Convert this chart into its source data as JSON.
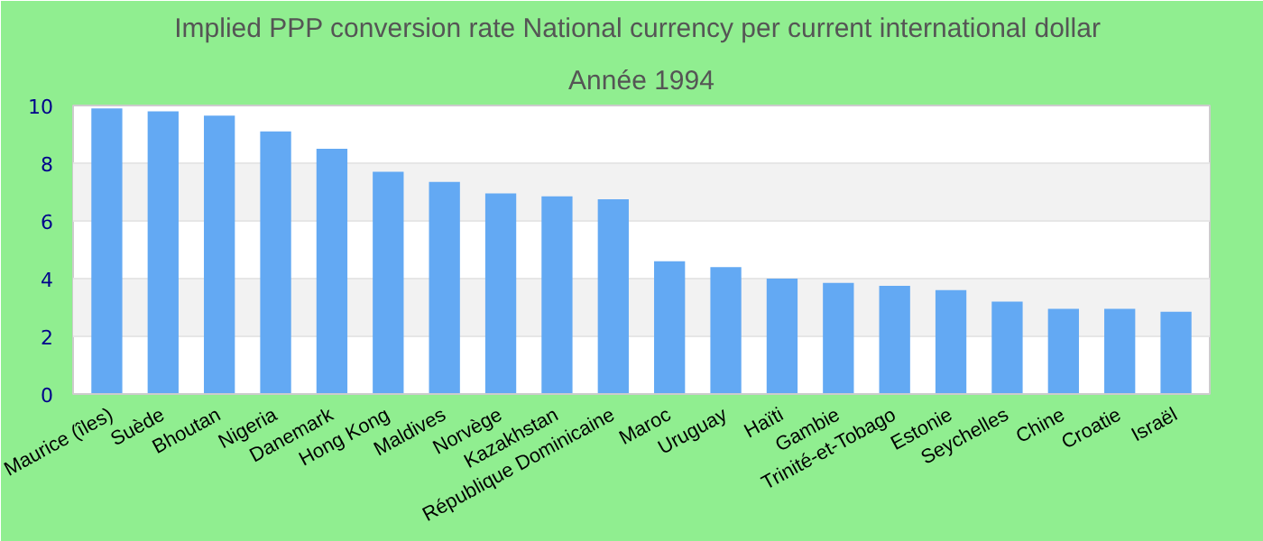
{
  "chart_data": {
    "type": "bar",
    "title": "Implied PPP conversion rate  National currency per current international dollar",
    "subtitle": "Année 1994",
    "categories": [
      "Maurice (îles)",
      "Suède",
      "Bhoutan",
      "Nigeria",
      "Danemark",
      "Hong Kong",
      "Maldives",
      "Norvège",
      "Kazakhstan",
      "République Dominicaine",
      "Maroc",
      "Uruguay",
      "Haïti",
      "Gambie",
      "Trinité-et-Tobago",
      "Estonie",
      "Seychelles",
      "Chine",
      "Croatie",
      "Israël"
    ],
    "values": [
      9.9,
      9.8,
      9.65,
      9.1,
      8.5,
      7.7,
      7.35,
      6.95,
      6.85,
      6.75,
      4.6,
      4.4,
      4.0,
      3.85,
      3.75,
      3.6,
      3.2,
      2.95,
      2.95,
      2.85
    ],
    "color": "#63a9f3",
    "ylim": [
      0,
      10
    ],
    "yticks": [
      0,
      2,
      4,
      6,
      8,
      10
    ],
    "grid": "y"
  }
}
